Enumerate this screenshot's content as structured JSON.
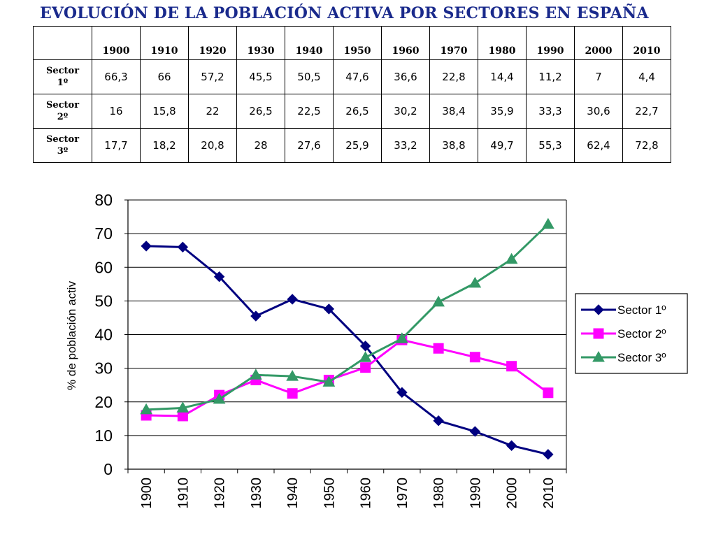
{
  "table": {
    "title": "EVOLUCIÓN DE LA POBLACIÓN ACTIVA POR SECTORES EN ESPAÑA",
    "years": [
      "1900",
      "1910",
      "1920",
      "1930",
      "1940",
      "1950",
      "1960",
      "1970",
      "1980",
      "1990",
      "2000",
      "2010"
    ],
    "rows": [
      {
        "label_line1": "Sector",
        "label_line2": "1º",
        "values": [
          "66,3",
          "66",
          "57,2",
          "45,5",
          "50,5",
          "47,6",
          "36,6",
          "22,8",
          "14,4",
          "11,2",
          "7",
          "4,4"
        ]
      },
      {
        "label_line1": "Sector",
        "label_line2": "2º",
        "values": [
          "16",
          "15,8",
          "22",
          "26,5",
          "22,5",
          "26,5",
          "30,2",
          "38,4",
          "35,9",
          "33,3",
          "30,6",
          "22,7"
        ]
      },
      {
        "label_line1": "Sector",
        "label_line2": "3º",
        "values": [
          "17,7",
          "18,2",
          "20,8",
          "28",
          "27,6",
          "25,9",
          "33,2",
          "38,8",
          "49,7",
          "55,3",
          "62,4",
          "72,8"
        ]
      }
    ]
  },
  "chart_data": {
    "type": "line",
    "title": "",
    "xlabel": "",
    "ylabel": "% de población activ",
    "categories": [
      "1900",
      "1910",
      "1920",
      "1930",
      "1940",
      "1950",
      "1960",
      "1970",
      "1980",
      "1990",
      "2000",
      "2010"
    ],
    "ylim": [
      0,
      80
    ],
    "yticks": [
      0,
      10,
      20,
      30,
      40,
      50,
      60,
      70,
      80
    ],
    "grid": true,
    "legend_position": "right",
    "series": [
      {
        "name": "Sector 1º",
        "color": "#000080",
        "marker": "diamond",
        "values": [
          66.3,
          66,
          57.2,
          45.5,
          50.5,
          47.6,
          36.6,
          22.8,
          14.4,
          11.2,
          7,
          4.4
        ]
      },
      {
        "name": "Sector 2º",
        "color": "#ff00ff",
        "marker": "square",
        "values": [
          16,
          15.8,
          22,
          26.5,
          22.5,
          26.5,
          30.2,
          38.4,
          35.9,
          33.3,
          30.6,
          22.7
        ]
      },
      {
        "name": "Sector 3º",
        "color": "#339966",
        "marker": "triangle",
        "values": [
          17.7,
          18.2,
          20.8,
          28,
          27.6,
          25.9,
          33.2,
          38.8,
          49.7,
          55.3,
          62.4,
          72.8
        ]
      }
    ]
  }
}
